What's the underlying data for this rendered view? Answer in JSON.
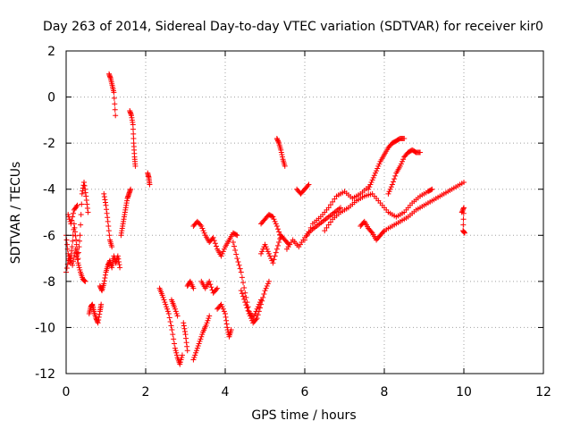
{
  "chart_data": {
    "type": "scatter",
    "title": "Day 263 of 2014, Sidereal Day-to-day VTEC variation (SDTVAR) for receiver kir0",
    "xlabel": "GPS time / hours",
    "ylabel": "SDTVAR / TECUs",
    "xlim": [
      0,
      12
    ],
    "ylim": [
      -12,
      2
    ],
    "xticks": [
      0,
      2,
      4,
      6,
      8,
      10,
      12
    ],
    "yticks": [
      -12,
      -10,
      -8,
      -6,
      -4,
      -2,
      0,
      2
    ],
    "grid": true,
    "legend": "none",
    "marker": "+",
    "color": "#ff0000",
    "series": [
      {
        "name": "SDTVAR",
        "segments": [
          [
            [
              0.0,
              -6.0
            ],
            [
              0.05,
              -6.8
            ],
            [
              0.1,
              -7.2
            ],
            [
              0.15,
              -6.5
            ],
            [
              0.2,
              -5.5
            ],
            [
              0.25,
              -6.2
            ],
            [
              0.3,
              -7.0
            ],
            [
              0.35,
              -6.0
            ],
            [
              0.4,
              -4.2
            ],
            [
              0.45,
              -3.7
            ],
            [
              0.5,
              -4.3
            ],
            [
              0.55,
              -5.0
            ]
          ],
          [
            [
              0.0,
              -7.6
            ],
            [
              0.08,
              -6.9
            ],
            [
              0.16,
              -7.3
            ],
            [
              0.24,
              -6.6
            ],
            [
              0.3,
              -7.2
            ],
            [
              0.36,
              -7.6
            ],
            [
              0.42,
              -7.9
            ],
            [
              0.48,
              -8.0
            ]
          ],
          [
            [
              0.05,
              -5.1
            ],
            [
              0.12,
              -5.5
            ],
            [
              0.2,
              -4.9
            ],
            [
              0.28,
              -4.7
            ]
          ],
          [
            [
              0.58,
              -9.4
            ],
            [
              0.62,
              -9.1
            ],
            [
              0.66,
              -9.0
            ],
            [
              0.7,
              -9.3
            ],
            [
              0.75,
              -9.6
            ],
            [
              0.8,
              -9.8
            ],
            [
              0.85,
              -9.3
            ],
            [
              0.88,
              -9.0
            ]
          ],
          [
            [
              0.85,
              -8.2
            ],
            [
              0.9,
              -8.4
            ],
            [
              0.95,
              -8.1
            ],
            [
              1.0,
              -7.6
            ],
            [
              1.05,
              -7.3
            ],
            [
              1.1,
              -7.1
            ],
            [
              1.15,
              -7.4
            ],
            [
              1.2,
              -6.9
            ],
            [
              1.25,
              -7.2
            ],
            [
              1.3,
              -6.9
            ],
            [
              1.35,
              -7.4
            ]
          ],
          [
            [
              0.95,
              -4.2
            ],
            [
              1.0,
              -4.7
            ],
            [
              1.05,
              -5.4
            ],
            [
              1.1,
              -6.2
            ],
            [
              1.15,
              -6.5
            ]
          ],
          [
            [
              1.08,
              1.0
            ],
            [
              1.12,
              0.8
            ],
            [
              1.16,
              0.5
            ],
            [
              1.2,
              0.2
            ],
            [
              1.24,
              -0.8
            ]
          ],
          [
            [
              1.38,
              -6.0
            ],
            [
              1.42,
              -5.6
            ],
            [
              1.46,
              -5.2
            ],
            [
              1.5,
              -4.8
            ],
            [
              1.54,
              -4.4
            ],
            [
              1.58,
              -4.2
            ],
            [
              1.62,
              -4.0
            ]
          ],
          [
            [
              1.6,
              -0.6
            ],
            [
              1.64,
              -0.8
            ],
            [
              1.68,
              -1.2
            ],
            [
              1.7,
              -2.0
            ],
            [
              1.72,
              -2.6
            ],
            [
              1.74,
              -3.0
            ]
          ],
          [
            [
              2.05,
              -3.3
            ],
            [
              2.08,
              -3.5
            ],
            [
              2.1,
              -3.8
            ]
          ],
          [
            [
              2.35,
              -8.3
            ],
            [
              2.42,
              -8.6
            ],
            [
              2.5,
              -9.0
            ],
            [
              2.58,
              -9.4
            ],
            [
              2.66,
              -10.1
            ],
            [
              2.74,
              -10.9
            ],
            [
              2.8,
              -11.3
            ],
            [
              2.86,
              -11.6
            ],
            [
              2.92,
              -11.2
            ]
          ],
          [
            [
              2.65,
              -8.8
            ],
            [
              2.72,
              -9.1
            ],
            [
              2.8,
              -9.5
            ]
          ],
          [
            [
              2.95,
              -9.8
            ],
            [
              3.0,
              -10.3
            ],
            [
              3.05,
              -11.0
            ]
          ],
          [
            [
              3.2,
              -11.4
            ],
            [
              3.28,
              -11.0
            ],
            [
              3.36,
              -10.6
            ],
            [
              3.44,
              -10.2
            ],
            [
              3.52,
              -9.9
            ],
            [
              3.6,
              -9.5
            ]
          ],
          [
            [
              3.05,
              -8.2
            ],
            [
              3.12,
              -8.0
            ],
            [
              3.2,
              -8.3
            ]
          ],
          [
            [
              3.2,
              -5.6
            ],
            [
              3.3,
              -5.4
            ],
            [
              3.4,
              -5.6
            ],
            [
              3.5,
              -6.0
            ],
            [
              3.6,
              -6.3
            ],
            [
              3.7,
              -6.1
            ],
            [
              3.8,
              -6.6
            ],
            [
              3.9,
              -6.9
            ],
            [
              4.0,
              -6.5
            ],
            [
              4.1,
              -6.2
            ],
            [
              4.2,
              -5.9
            ],
            [
              4.3,
              -6.0
            ]
          ],
          [
            [
              3.4,
              -8.0
            ],
            [
              3.5,
              -8.3
            ],
            [
              3.6,
              -8.0
            ],
            [
              3.7,
              -8.5
            ],
            [
              3.8,
              -8.3
            ]
          ],
          [
            [
              3.8,
              -9.2
            ],
            [
              3.9,
              -9.0
            ],
            [
              4.0,
              -9.4
            ],
            [
              4.05,
              -10.0
            ],
            [
              4.1,
              -10.4
            ],
            [
              4.15,
              -10.1
            ]
          ],
          [
            [
              4.2,
              -6.3
            ],
            [
              4.3,
              -7.0
            ],
            [
              4.4,
              -7.6
            ],
            [
              4.5,
              -8.5
            ],
            [
              4.6,
              -9.3
            ],
            [
              4.7,
              -9.6
            ],
            [
              4.8,
              -9.2
            ],
            [
              4.9,
              -8.8
            ]
          ],
          [
            [
              4.4,
              -8.4
            ],
            [
              4.5,
              -8.9
            ],
            [
              4.6,
              -9.4
            ],
            [
              4.7,
              -9.8
            ],
            [
              4.8,
              -9.6
            ],
            [
              4.9,
              -9.0
            ],
            [
              5.0,
              -8.4
            ],
            [
              5.1,
              -8.0
            ]
          ],
          [
            [
              4.9,
              -6.8
            ],
            [
              5.0,
              -6.4
            ],
            [
              5.1,
              -6.8
            ],
            [
              5.2,
              -7.2
            ],
            [
              5.3,
              -6.6
            ],
            [
              5.4,
              -6.0
            ],
            [
              5.5,
              -6.2
            ],
            [
              5.6,
              -6.4
            ]
          ],
          [
            [
              4.9,
              -5.5
            ],
            [
              5.0,
              -5.3
            ],
            [
              5.1,
              -5.1
            ],
            [
              5.2,
              -5.2
            ],
            [
              5.3,
              -5.6
            ],
            [
              5.4,
              -6.1
            ]
          ],
          [
            [
              5.3,
              -1.8
            ],
            [
              5.35,
              -2.0
            ],
            [
              5.4,
              -2.3
            ],
            [
              5.45,
              -2.7
            ],
            [
              5.5,
              -3.0
            ]
          ],
          [
            [
              5.55,
              -6.6
            ],
            [
              5.7,
              -6.2
            ],
            [
              5.85,
              -6.5
            ],
            [
              6.0,
              -6.1
            ],
            [
              6.15,
              -5.8
            ],
            [
              6.3,
              -5.6
            ],
            [
              6.45,
              -5.4
            ],
            [
              6.6,
              -5.2
            ],
            [
              6.75,
              -5.0
            ],
            [
              6.9,
              -4.8
            ]
          ],
          [
            [
              5.8,
              -4.0
            ],
            [
              5.9,
              -4.2
            ],
            [
              6.0,
              -4.0
            ],
            [
              6.1,
              -3.8
            ]
          ],
          [
            [
              6.0,
              -6.2
            ],
            [
              6.2,
              -5.5
            ],
            [
              6.4,
              -5.2
            ],
            [
              6.6,
              -4.8
            ],
            [
              6.8,
              -4.3
            ],
            [
              7.0,
              -4.1
            ],
            [
              7.2,
              -4.4
            ],
            [
              7.4,
              -4.2
            ],
            [
              7.6,
              -3.9
            ]
          ],
          [
            [
              6.5,
              -5.8
            ],
            [
              6.7,
              -5.3
            ],
            [
              6.9,
              -5.0
            ],
            [
              7.1,
              -4.8
            ],
            [
              7.3,
              -4.5
            ],
            [
              7.5,
              -4.3
            ],
            [
              7.7,
              -4.2
            ],
            [
              7.9,
              -4.6
            ],
            [
              8.1,
              -5.0
            ],
            [
              8.3,
              -5.2
            ],
            [
              8.5,
              -5.0
            ],
            [
              8.7,
              -4.6
            ],
            [
              8.9,
              -4.3
            ],
            [
              9.1,
              -4.1
            ],
            [
              9.2,
              -4.0
            ]
          ],
          [
            [
              7.4,
              -5.6
            ],
            [
              7.5,
              -5.4
            ],
            [
              7.6,
              -5.7
            ],
            [
              7.7,
              -5.9
            ],
            [
              7.8,
              -6.2
            ],
            [
              7.9,
              -6.0
            ],
            [
              8.0,
              -5.8
            ],
            [
              8.2,
              -5.6
            ],
            [
              8.4,
              -5.4
            ],
            [
              8.6,
              -5.2
            ],
            [
              8.8,
              -4.9
            ],
            [
              9.0,
              -4.7
            ],
            [
              9.2,
              -4.5
            ],
            [
              9.4,
              -4.3
            ],
            [
              9.6,
              -4.1
            ],
            [
              9.8,
              -3.9
            ],
            [
              10.0,
              -3.7
            ]
          ],
          [
            [
              7.6,
              -4.0
            ],
            [
              7.7,
              -3.6
            ],
            [
              7.8,
              -3.2
            ],
            [
              7.9,
              -2.8
            ],
            [
              8.0,
              -2.5
            ],
            [
              8.1,
              -2.2
            ],
            [
              8.2,
              -2.0
            ],
            [
              8.3,
              -1.9
            ],
            [
              8.4,
              -1.8
            ],
            [
              8.5,
              -1.8
            ]
          ],
          [
            [
              8.1,
              -4.2
            ],
            [
              8.2,
              -3.8
            ],
            [
              8.3,
              -3.3
            ],
            [
              8.4,
              -3.0
            ],
            [
              8.5,
              -2.6
            ],
            [
              8.6,
              -2.4
            ],
            [
              8.7,
              -2.3
            ],
            [
              8.8,
              -2.4
            ],
            [
              8.9,
              -2.4
            ]
          ],
          [
            [
              9.95,
              -5.0
            ],
            [
              10.0,
              -4.8
            ],
            [
              9.98,
              -5.8
            ],
            [
              10.02,
              -5.9
            ]
          ]
        ]
      }
    ]
  }
}
